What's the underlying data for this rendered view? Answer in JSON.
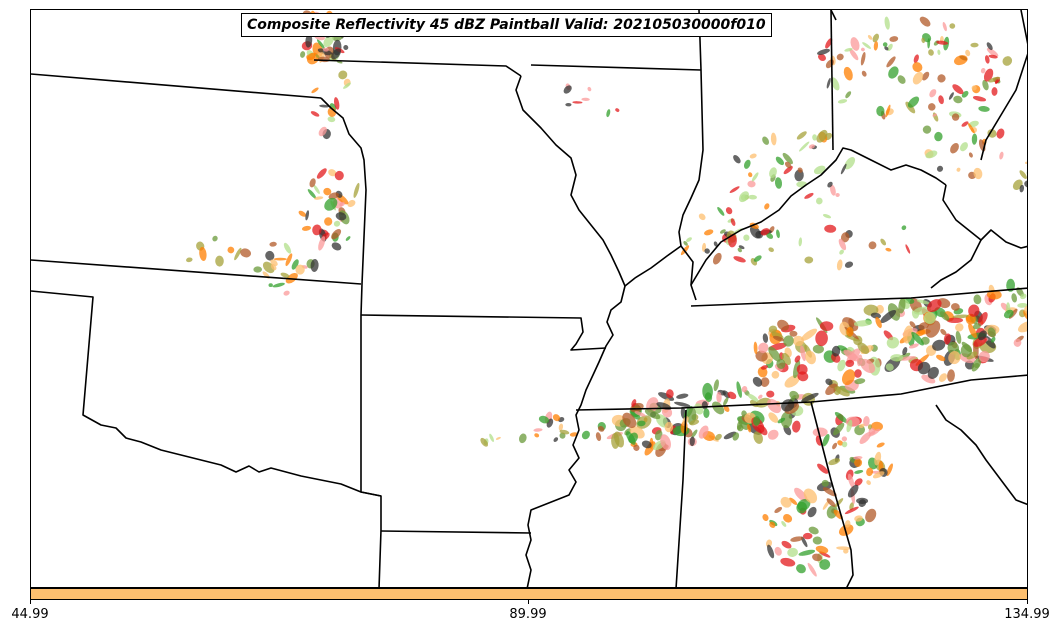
{
  "title": "Composite Reflectivity 45 dBZ Paintball Valid: 202105030000f010",
  "colorbar": {
    "color": "#fdbf6f",
    "tick_labels": [
      "44.99",
      "89.99",
      "134.99"
    ]
  },
  "paintball_colors": [
    "#e31a1c",
    "#fb9a99",
    "#33a02c",
    "#b2df8a",
    "#ff7f00",
    "#fdbf6f",
    "#b15928",
    "#a6a13a",
    "#333333",
    "#6a9a3a"
  ],
  "map_style": {
    "boundary_color": "#000000",
    "background": "#ffffff"
  }
}
